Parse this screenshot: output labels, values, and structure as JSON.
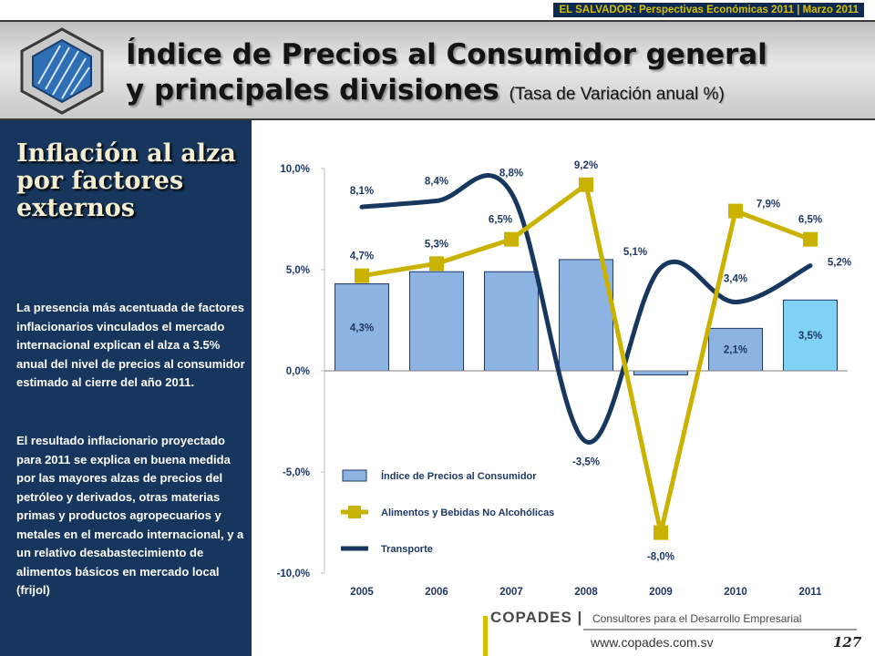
{
  "header": {
    "top_tag": "EL SALVADOR: Perspectivas Económicas 2011 | Marzo 2011",
    "title_line1": "Índice de Precios al Consumidor general",
    "title_line2": "y principales divisiones",
    "title_sub": "(Tasa de Variación anual %)"
  },
  "sidebar": {
    "heading": "Inflación al alza por factores externos",
    "paragraph1": "La presencia más acentuada de factores inflacionarios vinculados el mercado internacional explican el alza a 3.5% anual del nivel de precios al consumidor estimado al cierre del año 2011.",
    "paragraph2": "El resultado inflacionario proyectado para 2011 se explica en buena medida por las mayores alzas de precios del petróleo y derivados, otras materias primas y productos agropecuarios y metales en el mercado internacional, y a un relativo desabastecimiento de alimentos básicos en mercado local (frijol)"
  },
  "footer": {
    "brand": "COPADES |",
    "tagline": "Consultores para el Desarrollo Empresarial",
    "url": "www.copades.com.sv",
    "page_number": "127"
  },
  "chart_data": {
    "type": "bar",
    "categories": [
      "2005",
      "2006",
      "2007",
      "2008",
      "2009",
      "2010",
      "2011"
    ],
    "ylim": [
      -10,
      10
    ],
    "yticks": [
      "10,0%",
      "5,0%",
      "0,0%",
      "-5,0%",
      "-10,0%"
    ],
    "ytick_values": [
      10,
      5,
      0,
      -5,
      -10
    ],
    "series": [
      {
        "name": "Índice de Precios al Consumidor",
        "kind": "bar",
        "color": "#8db3e2",
        "highlight_color": "#7fd1f5",
        "values": [
          4.3,
          4.9,
          4.9,
          5.5,
          -0.2,
          2.1,
          3.5
        ],
        "labels": [
          "4,3%",
          "",
          "",
          "",
          "",
          "2,1%",
          "3,5%"
        ]
      },
      {
        "name": "Alimentos y Bebidas No Alcohólicas",
        "kind": "line-marker",
        "color": "#c9b200",
        "values": [
          4.7,
          5.3,
          6.5,
          9.2,
          -8.0,
          7.9,
          6.5
        ],
        "labels": [
          "4,7%",
          "5,3%",
          "6,5%",
          "9,2%",
          "-8,0%",
          "7,9%",
          "6,5%"
        ]
      },
      {
        "name": "Transporte",
        "kind": "smooth-line",
        "color": "#17375e",
        "values": [
          8.1,
          8.4,
          8.8,
          -3.5,
          5.1,
          3.4,
          5.2
        ],
        "labels": [
          "8,1%",
          "8,4%",
          "8,8%",
          "-3,5%",
          "5,1%",
          "3,4%",
          "5,2%"
        ]
      }
    ]
  }
}
